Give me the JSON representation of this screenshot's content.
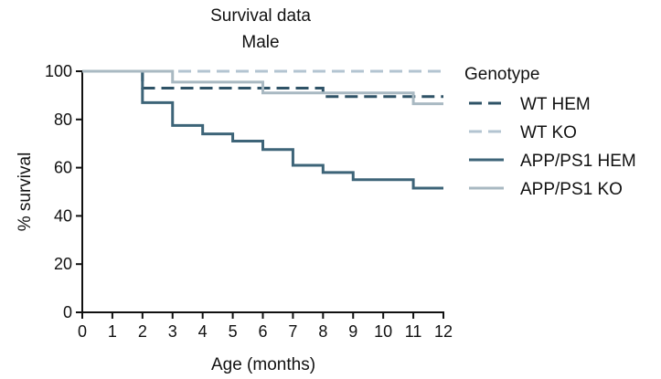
{
  "chart_data": {
    "type": "line",
    "step": true,
    "title": "Survival data",
    "subtitle": "Male",
    "xlabel": "Age (months)",
    "ylabel": "% survival",
    "xlim": [
      0,
      12
    ],
    "ylim": [
      0,
      100
    ],
    "x_ticks": [
      0,
      1,
      2,
      3,
      4,
      5,
      6,
      7,
      8,
      9,
      10,
      11,
      12
    ],
    "y_ticks": [
      0,
      20,
      40,
      60,
      80,
      100
    ],
    "grid": false,
    "legend_title": "Genotype",
    "legend_position": "right",
    "series": [
      {
        "name": "WT HEM",
        "color": "#2e5266",
        "dashed": true,
        "x": [
          0,
          2,
          8,
          12
        ],
        "y": [
          100,
          93,
          89.5,
          89.5
        ]
      },
      {
        "name": "WT KO",
        "color": "#b3c4d1",
        "dashed": true,
        "x": [
          0,
          12
        ],
        "y": [
          100,
          100
        ]
      },
      {
        "name": "APP/PS1 HEM",
        "color": "#3d6478",
        "dashed": false,
        "x": [
          0,
          2,
          3,
          4,
          5,
          6,
          7,
          8,
          9,
          11,
          12
        ],
        "y": [
          100,
          87,
          77.5,
          74,
          71,
          67.5,
          61,
          58,
          55,
          51.5,
          51.5
        ]
      },
      {
        "name": "APP/PS1 KO",
        "color": "#a9b9c2",
        "dashed": false,
        "x": [
          0,
          3,
          6,
          11,
          12
        ],
        "y": [
          100,
          95.5,
          91,
          86.5,
          86.5
        ]
      }
    ]
  }
}
